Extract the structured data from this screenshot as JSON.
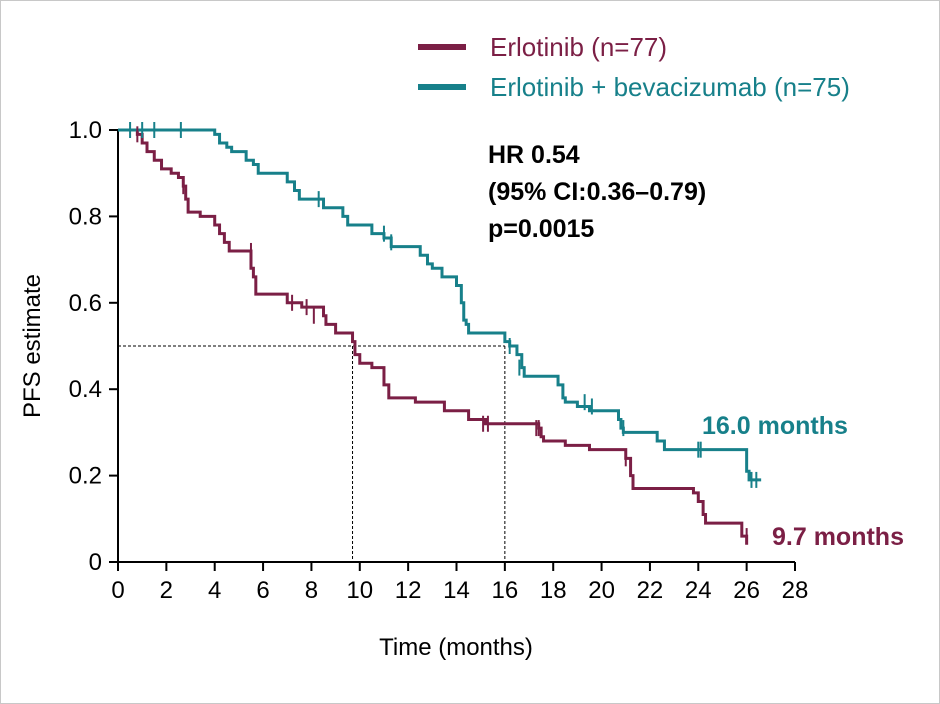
{
  "chart_data": {
    "type": "line",
    "xlabel": "Time (months)",
    "ylabel": "PFS estimate",
    "xlim": [
      0,
      28
    ],
    "ylim": [
      0,
      1.0
    ],
    "x_ticks": [
      0,
      2,
      4,
      6,
      8,
      10,
      12,
      14,
      16,
      18,
      20,
      22,
      24,
      26,
      28
    ],
    "x_tick_labels": [
      "0",
      "2",
      "4",
      "6",
      "8",
      "10",
      "12",
      "14",
      "16",
      "18",
      "20",
      "22",
      "24",
      "26",
      "28"
    ],
    "y_ticks": [
      0,
      0.2,
      0.4,
      0.6,
      0.8,
      1.0
    ],
    "y_tick_labels": [
      "0",
      "0.2",
      "0.4",
      "0.6",
      "0.8",
      "1.0"
    ],
    "grid": false,
    "legend_position": "top-right",
    "annotation_lines": [
      "HR 0.54",
      "(95% CI:0.36–0.79)",
      "p=0.0015"
    ],
    "median_line_y": 0.5,
    "series": [
      {
        "name": "Erlotinib (n=77)",
        "color": "#7b1f45",
        "median_x": 9.7,
        "median_label": "9.7 months",
        "steps": [
          [
            0,
            1.0
          ],
          [
            0.8,
            0.99
          ],
          [
            1.0,
            0.97
          ],
          [
            1.2,
            0.95
          ],
          [
            1.5,
            0.93
          ],
          [
            1.8,
            0.91
          ],
          [
            2.2,
            0.9
          ],
          [
            2.5,
            0.89
          ],
          [
            2.7,
            0.87
          ],
          [
            2.8,
            0.84
          ],
          [
            2.9,
            0.81
          ],
          [
            3.4,
            0.8
          ],
          [
            4.0,
            0.78
          ],
          [
            4.2,
            0.76
          ],
          [
            4.4,
            0.74
          ],
          [
            4.6,
            0.72
          ],
          [
            5.5,
            0.68
          ],
          [
            5.6,
            0.66
          ],
          [
            5.7,
            0.62
          ],
          [
            7.0,
            0.6
          ],
          [
            7.6,
            0.59
          ],
          [
            8.5,
            0.57
          ],
          [
            8.6,
            0.55
          ],
          [
            9.0,
            0.53
          ],
          [
            9.7,
            0.51
          ],
          [
            9.8,
            0.48
          ],
          [
            10.0,
            0.46
          ],
          [
            10.5,
            0.45
          ],
          [
            11.0,
            0.41
          ],
          [
            11.2,
            0.38
          ],
          [
            12.3,
            0.37
          ],
          [
            13.5,
            0.35
          ],
          [
            14.5,
            0.33
          ],
          [
            15.2,
            0.32
          ],
          [
            17.4,
            0.31
          ],
          [
            17.5,
            0.29
          ],
          [
            17.6,
            0.28
          ],
          [
            18.5,
            0.27
          ],
          [
            19.5,
            0.26
          ],
          [
            21.0,
            0.24
          ],
          [
            21.2,
            0.2
          ],
          [
            21.3,
            0.17
          ],
          [
            23.8,
            0.16
          ],
          [
            24.0,
            0.14
          ],
          [
            24.2,
            0.11
          ],
          [
            24.3,
            0.09
          ],
          [
            25.8,
            0.06
          ],
          [
            26.0,
            0.04
          ]
        ],
        "end_x": 26.0,
        "censors": [
          [
            0.8,
            0.99
          ],
          [
            2.7,
            0.87
          ],
          [
            5.5,
            0.72
          ],
          [
            7.2,
            0.6
          ],
          [
            7.8,
            0.59
          ],
          [
            8.1,
            0.57
          ],
          [
            15.1,
            0.32
          ],
          [
            15.3,
            0.32
          ],
          [
            17.3,
            0.31
          ],
          [
            17.4,
            0.31
          ],
          [
            21.0,
            0.24
          ],
          [
            26.0,
            0.06
          ]
        ]
      },
      {
        "name": "Erlotinib + bevacizumab (n=75)",
        "color": "#17808a",
        "median_x": 16.0,
        "median_label": "16.0 months",
        "steps": [
          [
            0,
            1.0
          ],
          [
            4.0,
            0.99
          ],
          [
            4.2,
            0.97
          ],
          [
            4.5,
            0.96
          ],
          [
            4.7,
            0.95
          ],
          [
            5.3,
            0.93
          ],
          [
            5.6,
            0.92
          ],
          [
            5.8,
            0.9
          ],
          [
            7.0,
            0.88
          ],
          [
            7.3,
            0.86
          ],
          [
            7.5,
            0.84
          ],
          [
            8.5,
            0.82
          ],
          [
            9.3,
            0.8
          ],
          [
            9.5,
            0.78
          ],
          [
            10.5,
            0.76
          ],
          [
            11.0,
            0.75
          ],
          [
            11.3,
            0.73
          ],
          [
            12.5,
            0.71
          ],
          [
            12.8,
            0.69
          ],
          [
            13.0,
            0.68
          ],
          [
            13.4,
            0.66
          ],
          [
            14.0,
            0.64
          ],
          [
            14.2,
            0.6
          ],
          [
            14.3,
            0.56
          ],
          [
            14.4,
            0.55
          ],
          [
            14.5,
            0.53
          ],
          [
            15.0,
            0.53
          ],
          [
            15.3,
            0.53
          ],
          [
            16.0,
            0.51
          ],
          [
            16.2,
            0.5
          ],
          [
            16.5,
            0.48
          ],
          [
            16.7,
            0.45
          ],
          [
            16.8,
            0.43
          ],
          [
            17.5,
            0.43
          ],
          [
            18.2,
            0.41
          ],
          [
            18.4,
            0.38
          ],
          [
            18.5,
            0.37
          ],
          [
            19.0,
            0.36
          ],
          [
            19.5,
            0.35
          ],
          [
            20.7,
            0.33
          ],
          [
            20.8,
            0.31
          ],
          [
            20.9,
            0.3
          ],
          [
            22.3,
            0.28
          ],
          [
            22.6,
            0.26
          ],
          [
            26.0,
            0.21
          ],
          [
            26.1,
            0.19
          ]
        ],
        "end_x": 26.6,
        "censors": [
          [
            0.5,
            1.0
          ],
          [
            1.0,
            1.0
          ],
          [
            1.5,
            1.0
          ],
          [
            2.6,
            1.0
          ],
          [
            8.3,
            0.84
          ],
          [
            11.0,
            0.76
          ],
          [
            11.3,
            0.74
          ],
          [
            16.2,
            0.5
          ],
          [
            16.6,
            0.45
          ],
          [
            19.3,
            0.37
          ],
          [
            19.6,
            0.36
          ],
          [
            20.9,
            0.31
          ],
          [
            24.0,
            0.26
          ],
          [
            24.1,
            0.26
          ],
          [
            26.2,
            0.19
          ],
          [
            26.4,
            0.19
          ]
        ]
      }
    ]
  }
}
